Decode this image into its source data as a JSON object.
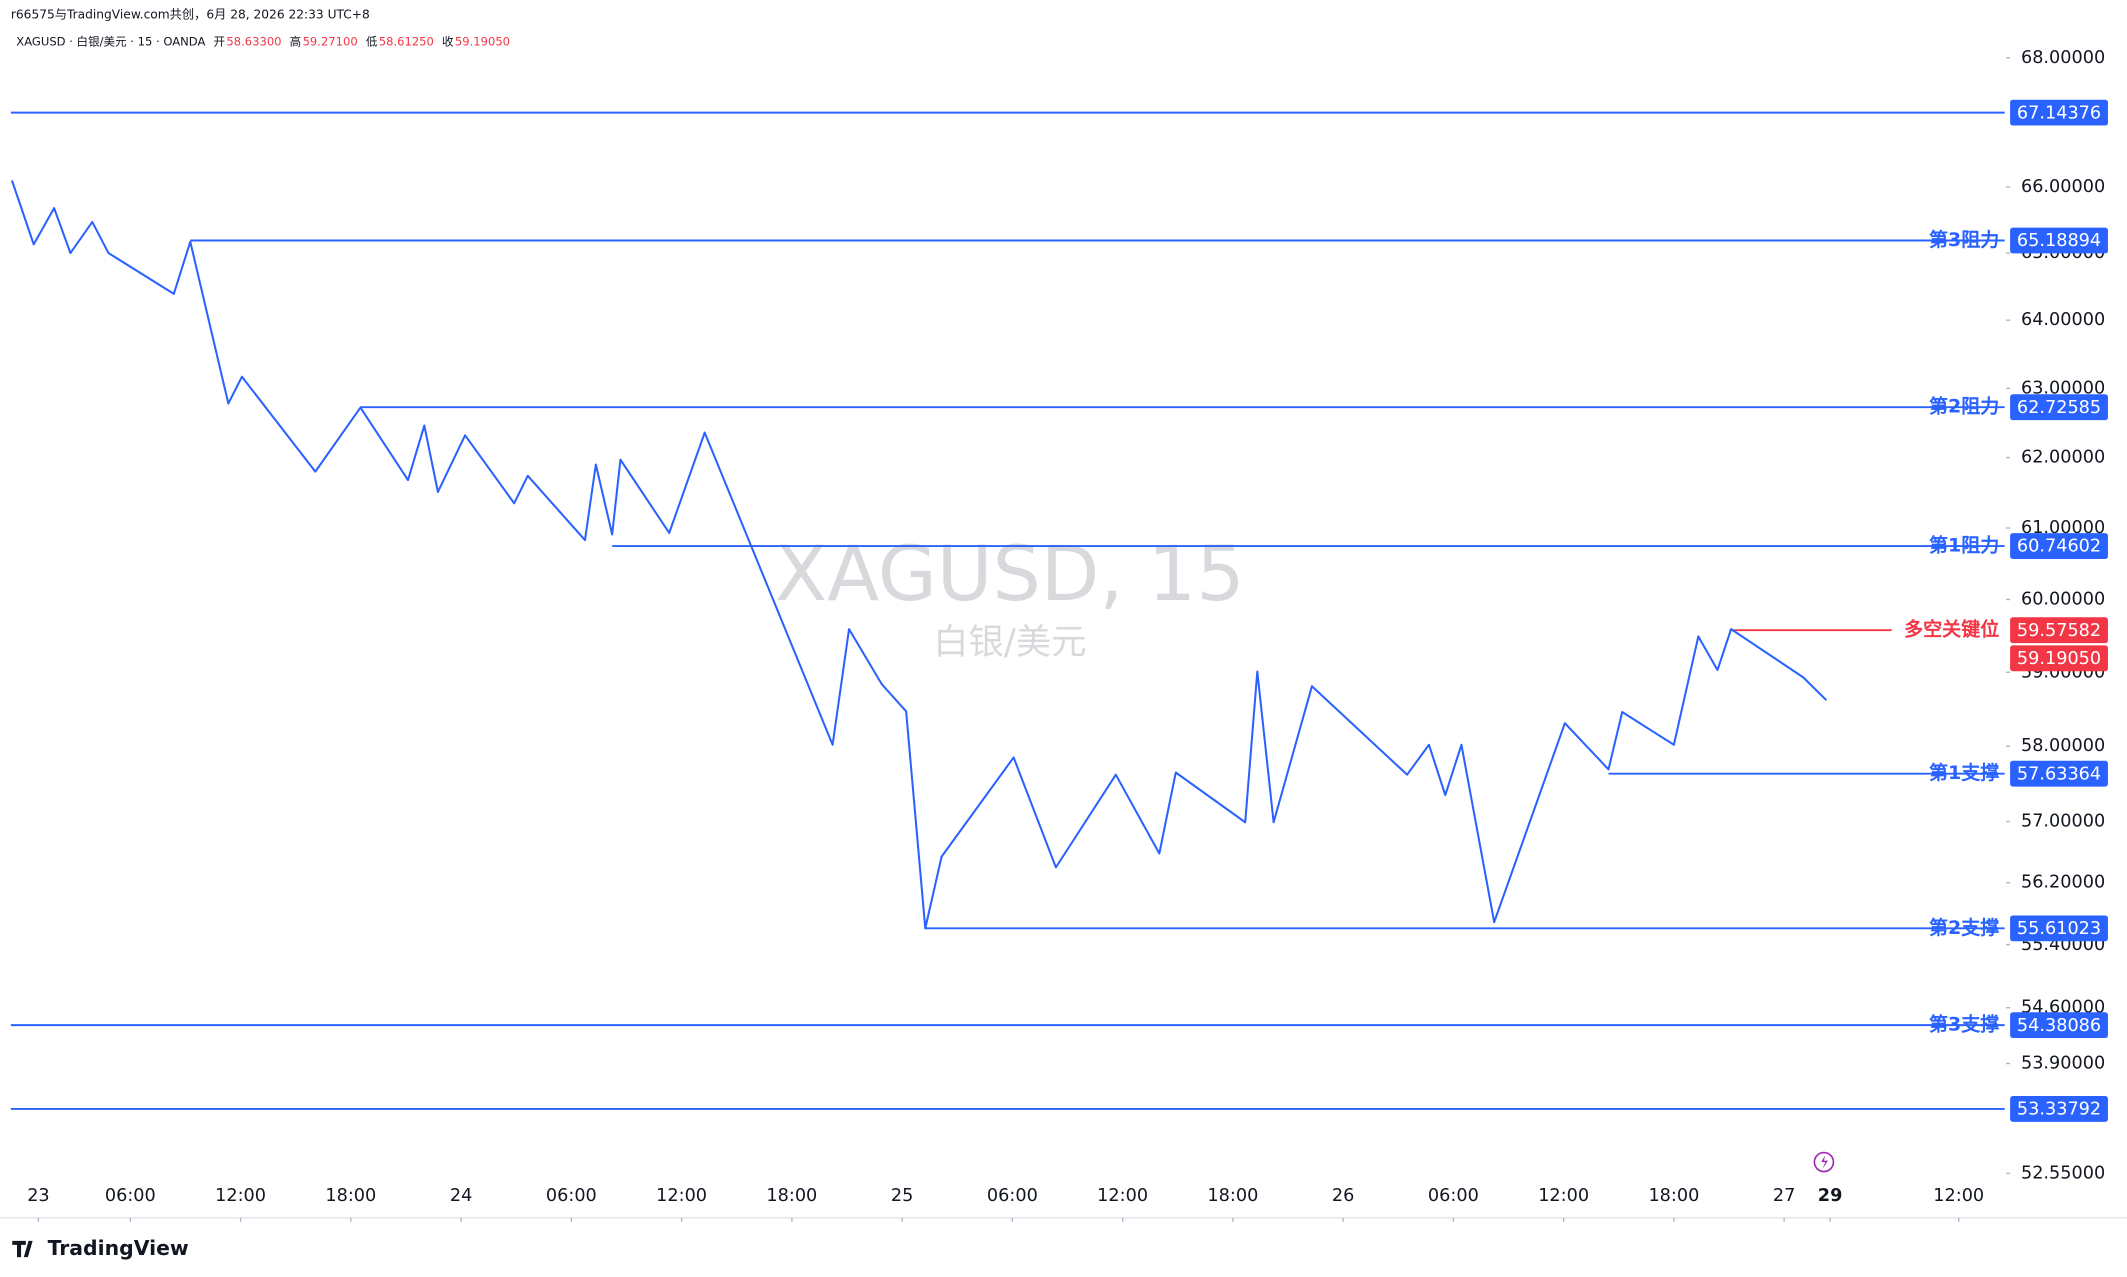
{
  "chart_data": {
    "type": "line",
    "attribution": "r66575与TradingView.com共创，6月 28, 2026 22:33 UTC+8",
    "symbol": "XAGUSD · 白银/美元 · 15 · OANDA",
    "ohlc": [
      {
        "name": "开",
        "value": "58.63300"
      },
      {
        "name": "高",
        "value": "59.27100"
      },
      {
        "name": "低",
        "value": "58.61250"
      },
      {
        "name": "收",
        "value": "59.19050"
      }
    ],
    "watermark": "XAGUSD, 15",
    "watermark_sub": "白银/美元",
    "brand": "TradingView",
    "log_scale": true,
    "xlim": [
      -0.5,
      108
    ],
    "ylim": [
      52.03,
      68.59
    ],
    "xticks": [
      {
        "value": 1,
        "label": "23"
      },
      {
        "value": 6,
        "label": "06:00"
      },
      {
        "value": 12,
        "label": "12:00"
      },
      {
        "value": 18,
        "label": "18:00"
      },
      {
        "value": 24,
        "label": "24"
      },
      {
        "value": 30,
        "label": "06:00"
      },
      {
        "value": 36,
        "label": "12:00"
      },
      {
        "value": 42,
        "label": "18:00"
      },
      {
        "value": 48,
        "label": "25"
      },
      {
        "value": 54,
        "label": "06:00"
      },
      {
        "value": 60,
        "label": "12:00"
      },
      {
        "value": 66,
        "label": "18:00"
      },
      {
        "value": 72,
        "label": "26"
      },
      {
        "value": 78,
        "label": "06:00"
      },
      {
        "value": 84,
        "label": "12:00"
      },
      {
        "value": 90,
        "label": "18:00"
      },
      {
        "value": 96,
        "label": "27"
      },
      {
        "value": 98.5,
        "label": "29"
      },
      {
        "value": 105.5,
        "label": "12:00"
      }
    ],
    "yticks": [
      {
        "value": 68,
        "label": "68.00000"
      },
      {
        "value": 66,
        "label": "66.00000"
      },
      {
        "value": 65,
        "label": "65.00000"
      },
      {
        "value": 64,
        "label": "64.00000"
      },
      {
        "value": 63,
        "label": "63.00000"
      },
      {
        "value": 62,
        "label": "62.00000"
      },
      {
        "value": 61,
        "label": "61.00000"
      },
      {
        "value": 60,
        "label": "60.00000"
      },
      {
        "value": 59,
        "label": "59.00000"
      },
      {
        "value": 58,
        "label": "58.00000"
      },
      {
        "value": 57,
        "label": "57.00000"
      },
      {
        "value": 56.2,
        "label": "56.20000"
      },
      {
        "value": 55.4,
        "label": "55.40000"
      },
      {
        "value": 54.6,
        "label": "54.60000"
      },
      {
        "value": 53.9,
        "label": "53.90000"
      },
      {
        "value": 52.55,
        "label": "52.55000"
      }
    ],
    "series": [
      {
        "color": "#2962ff",
        "x": [
          -0.44,
          0.74,
          1.85,
          2.74,
          3.93,
          4.81,
          8.37,
          9.26,
          11.33,
          12.07,
          16.07,
          18.52,
          21.11,
          22.0,
          22.74,
          24.22,
          26.89,
          27.63,
          30.74,
          31.33,
          32.22,
          32.67,
          35.33,
          37.26,
          44.22,
          45.11,
          46.89,
          48.22,
          49.26,
          50.15,
          54.07,
          56.37,
          59.63,
          62.0,
          62.89,
          66.67,
          67.33,
          68.22,
          70.3,
          75.48,
          76.67,
          77.56,
          78.44,
          80.22,
          84.07,
          86.44,
          87.19,
          90.0,
          91.33,
          92.37,
          93.11,
          97.04,
          98.3
        ],
        "values": [
          66.1,
          65.13,
          65.68,
          65.0,
          65.47,
          65.0,
          64.39,
          65.17,
          62.78,
          63.17,
          61.8,
          62.72,
          61.68,
          62.46,
          61.51,
          62.32,
          61.35,
          61.74,
          60.83,
          61.9,
          60.91,
          61.97,
          60.93,
          62.36,
          58.02,
          59.59,
          58.84,
          58.47,
          55.61,
          56.54,
          57.85,
          56.4,
          57.62,
          56.58,
          57.65,
          56.99,
          59.01,
          56.99,
          58.81,
          57.62,
          58.02,
          57.35,
          58.02,
          55.69,
          58.31,
          57.69,
          58.46,
          58.02,
          59.49,
          59.03,
          59.59,
          58.93,
          58.62
        ]
      }
    ],
    "levels": [
      {
        "value": 67.14376,
        "label": "67.14376",
        "color": "#2962ff",
        "x_start": -0.5
      },
      {
        "value": 65.18894,
        "label": "65.18894",
        "name": "第3阻力",
        "color": "#2962ff",
        "x_start": 9.26
      },
      {
        "value": 62.72585,
        "label": "62.72585",
        "name": "第2阻力",
        "color": "#2962ff",
        "x_start": 18.52
      },
      {
        "value": 60.74602,
        "label": "60.74602",
        "name": "第1阻力",
        "color": "#2962ff",
        "x_start": 32.22
      },
      {
        "value": 59.57582,
        "label": "59.57582",
        "name": "多空关键位",
        "color": "#f23645",
        "x_start": 93.11,
        "x_end": 101.85
      },
      {
        "value": 59.1905,
        "label": "59.19050",
        "color": "#f23645",
        "x_start": 98.3,
        "x_end": 98.3
      },
      {
        "value": 57.63364,
        "label": "57.63364",
        "name": "第1支撑",
        "color": "#2962ff",
        "x_start": 86.44
      },
      {
        "value": 55.61023,
        "label": "55.61023",
        "name": "第2支撑",
        "color": "#2962ff",
        "x_start": 49.26
      },
      {
        "value": 54.38086,
        "label": "54.38086",
        "name": "第3支撑",
        "color": "#2962ff",
        "x_start": -0.5
      },
      {
        "value": 53.33792,
        "label": "53.33792",
        "color": "#2962ff",
        "x_start": -0.5
      }
    ]
  }
}
